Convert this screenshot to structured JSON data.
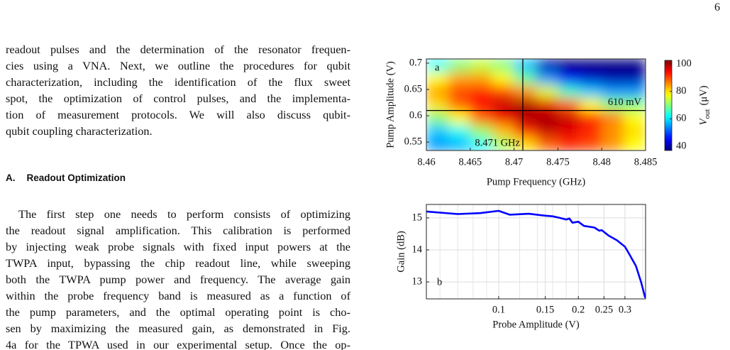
{
  "page_number": "6",
  "body": {
    "paragraph_1": [
      "readout pulses and the determination of the resonator frequen-",
      "cies using a VNA. Next, we outline the procedures for qubit",
      "characterization, including the identification of the flux sweet",
      "spot, the optimization of control pulses, and the implementa-",
      "tion of measurement protocols.  We will also discuss qubit-",
      "qubit coupling characterization."
    ],
    "section": {
      "number": "A.",
      "title": "Readout Optimization"
    },
    "paragraph_2": [
      "The first step one needs to perform consists of optimizing",
      "the readout signal amplification. This calibration is performed",
      "by injecting weak probe signals with fixed input powers at the",
      "TWPA input, bypassing the chip readout line, while sweeping",
      "both the TWPA pump power and frequency. The average gain",
      "within the probe frequency band is measured as a function of",
      "the pump parameters, and the optimal operating point is cho-",
      "sen by maximizing the measured gain, as demonstrated in Fig.",
      "4a for the TPWA used in our experimental setup. Once the op-"
    ]
  },
  "chart_data": [
    {
      "type": "heatmap",
      "label": "a",
      "xlabel": "Pump Frequency (GHz)",
      "ylabel": "Pump Amplitude (V)",
      "xlim": [
        8.46,
        8.485
      ],
      "ylim": [
        0.534,
        0.708
      ],
      "xticks": [
        8.46,
        8.465,
        8.47,
        8.475,
        8.48,
        8.485
      ],
      "yticks": [
        0.55,
        0.6,
        0.65,
        0.7
      ],
      "x_edges": [
        8.46,
        8.4625,
        8.465,
        8.4675,
        8.47,
        8.4725,
        8.475,
        8.4775,
        8.48,
        8.4825,
        8.485
      ],
      "y_edges": [
        0.534,
        0.559,
        0.584,
        0.609,
        0.634,
        0.659,
        0.684,
        0.708
      ],
      "z": [
        [
          55,
          57,
          62,
          72,
          80,
          88,
          92,
          90,
          85,
          78
        ],
        [
          58,
          62,
          72,
          82,
          92,
          98,
          96,
          92,
          85,
          80
        ],
        [
          70,
          78,
          88,
          95,
          99,
          100,
          98,
          92,
          86,
          78
        ],
        [
          80,
          88,
          94,
          98,
          100,
          96,
          88,
          78,
          70,
          70
        ],
        [
          84,
          90,
          92,
          90,
          85,
          76,
          65,
          58,
          55,
          55
        ],
        [
          78,
          84,
          84,
          78,
          68,
          55,
          45,
          42,
          40,
          40
        ],
        [
          62,
          70,
          74,
          70,
          58,
          40,
          37,
          37,
          37,
          37
        ]
      ],
      "colormap": "jet",
      "clim": [
        36.9,
        102.6
      ],
      "colorbar_ticks": [
        40,
        60,
        80,
        100
      ],
      "colorbar_label": {
        "symbol": "V",
        "subscript": "out",
        "unit": "(μV)"
      },
      "marker_x": 8.471,
      "marker_x_label": "8.471 GHz",
      "marker_y": 0.61,
      "marker_y_label": "610 mV",
      "marker_color": "#000000"
    },
    {
      "type": "line",
      "label": "b",
      "xlabel": "Probe Amplitude (V)",
      "ylabel": "Gain (dB)",
      "xscale": "log",
      "xlim": [
        0.0533,
        0.359
      ],
      "ylim": [
        12.47,
        15.42
      ],
      "xticks": [
        0.1,
        0.15,
        0.2,
        0.25,
        0.3
      ],
      "yticks": [
        13,
        14,
        15
      ],
      "x_minor_grid": [
        0.06,
        0.07,
        0.08,
        0.09,
        0.12,
        0.14,
        0.16,
        0.18,
        0.35
      ],
      "grid": true,
      "color": "#0000ff",
      "x": [
        0.0533,
        0.07,
        0.085,
        0.1,
        0.11,
        0.13,
        0.15,
        0.16,
        0.17,
        0.18,
        0.185,
        0.19,
        0.2,
        0.21,
        0.23,
        0.24,
        0.245,
        0.26,
        0.28,
        0.3,
        0.31,
        0.33,
        0.345,
        0.358
      ],
      "values": [
        15.2,
        15.12,
        15.15,
        15.22,
        15.1,
        15.13,
        15.07,
        15.05,
        15.0,
        14.95,
        14.98,
        14.85,
        14.88,
        14.75,
        14.7,
        14.6,
        14.62,
        14.45,
        14.3,
        14.1,
        13.9,
        13.5,
        13.0,
        12.5
      ]
    }
  ]
}
